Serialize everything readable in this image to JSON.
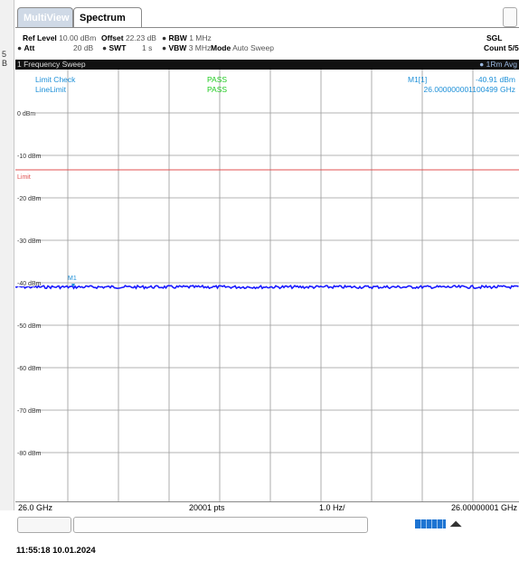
{
  "tabs": {
    "multiview": "MultiView",
    "spectrum": "Spectrum"
  },
  "params": {
    "ref_level_label": "Ref Level",
    "ref_level_value": "10.00 dBm",
    "offset_label": "Offset",
    "offset_value": "22.23 dB",
    "rbw_label": "RBW",
    "rbw_value": "1 MHz",
    "att_label": "Att",
    "att_value": "20 dB",
    "swt_label": "SWT",
    "swt_value": "1 s",
    "vbw_label": "VBW",
    "vbw_value": "3 MHz",
    "mode_label": "Mode",
    "mode_value": "Auto Sweep",
    "sgl": "SGL",
    "count": "Count 5/5"
  },
  "sweep": {
    "title": "1 Frequency Sweep",
    "trace_label": "1Rm Avg"
  },
  "info": {
    "limit_check": "Limit Check",
    "limit_check_result": "PASS",
    "line_limit": "LineLimit",
    "line_limit_result": "PASS",
    "marker_label": "M1[1]",
    "marker_level": "-40.91 dBm",
    "marker_freq": "26.000000001100499 GHz"
  },
  "plot": {
    "y_ticks": [
      "0 dBm",
      "-10 dBm",
      "-20 dBm",
      "-30 dBm",
      "-40 dBm",
      "-50 dBm",
      "-60 dBm",
      "-70 dBm",
      "-80 dBm"
    ],
    "limit_label": "Limit",
    "marker_tag": "M1"
  },
  "bottom": {
    "start": "26.0 GHz",
    "points": "20001 pts",
    "span": "1.0 Hz/",
    "stop": "26.00000001 GHz"
  },
  "timestamp": "11:55:18  10.01.2024",
  "colors": {
    "trace": "#1a1aff",
    "limit": "#e05050",
    "pass": "#22cc22",
    "info": "#1e90d8",
    "grid": "#9a9a9a"
  }
}
